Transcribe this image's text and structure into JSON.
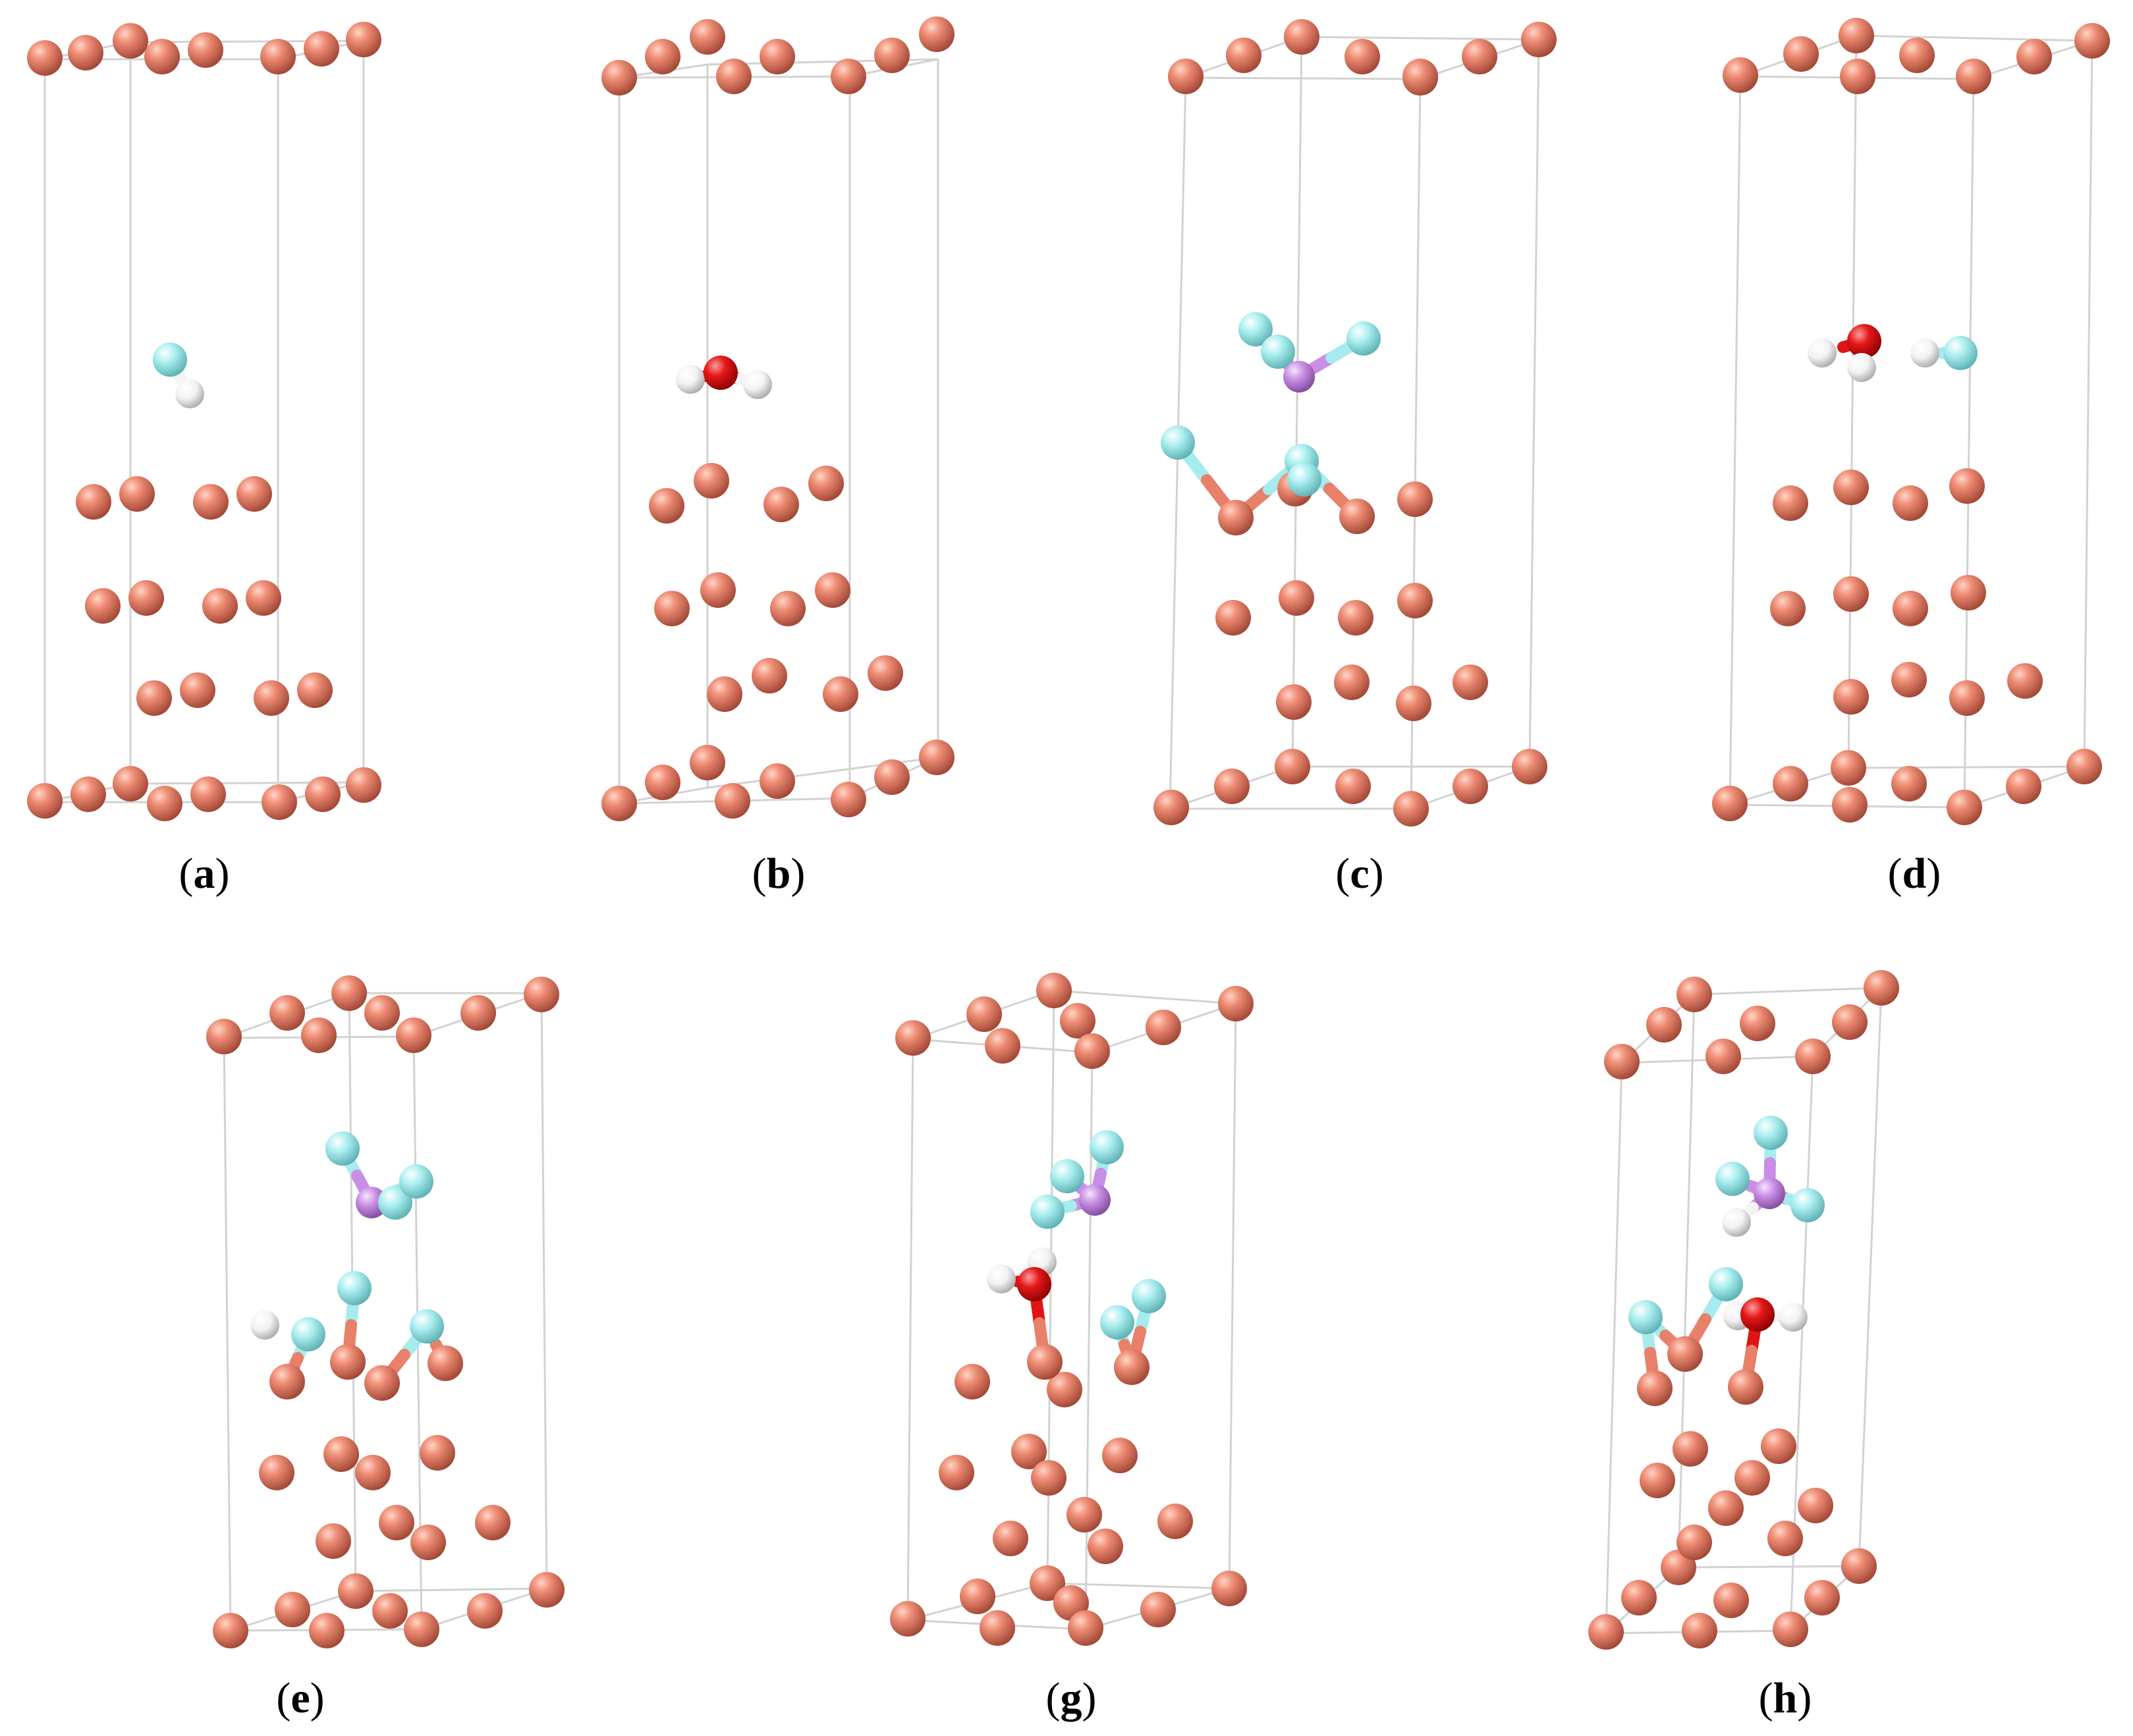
{
  "colors": {
    "background": "#ffffff",
    "cell_edge": "#d2d2d2",
    "copper": "#e8806a",
    "fluorine": "#a6ecee",
    "hydrogen": "#f4f4f4",
    "oxygen": "#e01414",
    "phosphorus": "#c98ee6"
  },
  "panels": [
    {
      "id": "a",
      "open": "(",
      "letter": "a",
      "close": ")"
    },
    {
      "id": "b",
      "open": "(",
      "letter": "b",
      "close": ")"
    },
    {
      "id": "c",
      "open": "(",
      "letter": "c",
      "close": ")"
    },
    {
      "id": "d",
      "open": "(",
      "letter": "d",
      "close": ")"
    },
    {
      "id": "e",
      "open": "(",
      "letter": "e",
      "close": ")"
    },
    {
      "id": "g",
      "open": "(",
      "letter": "g",
      "close": ")"
    },
    {
      "id": "h",
      "open": "(",
      "letter": "h",
      "close": ")"
    }
  ]
}
